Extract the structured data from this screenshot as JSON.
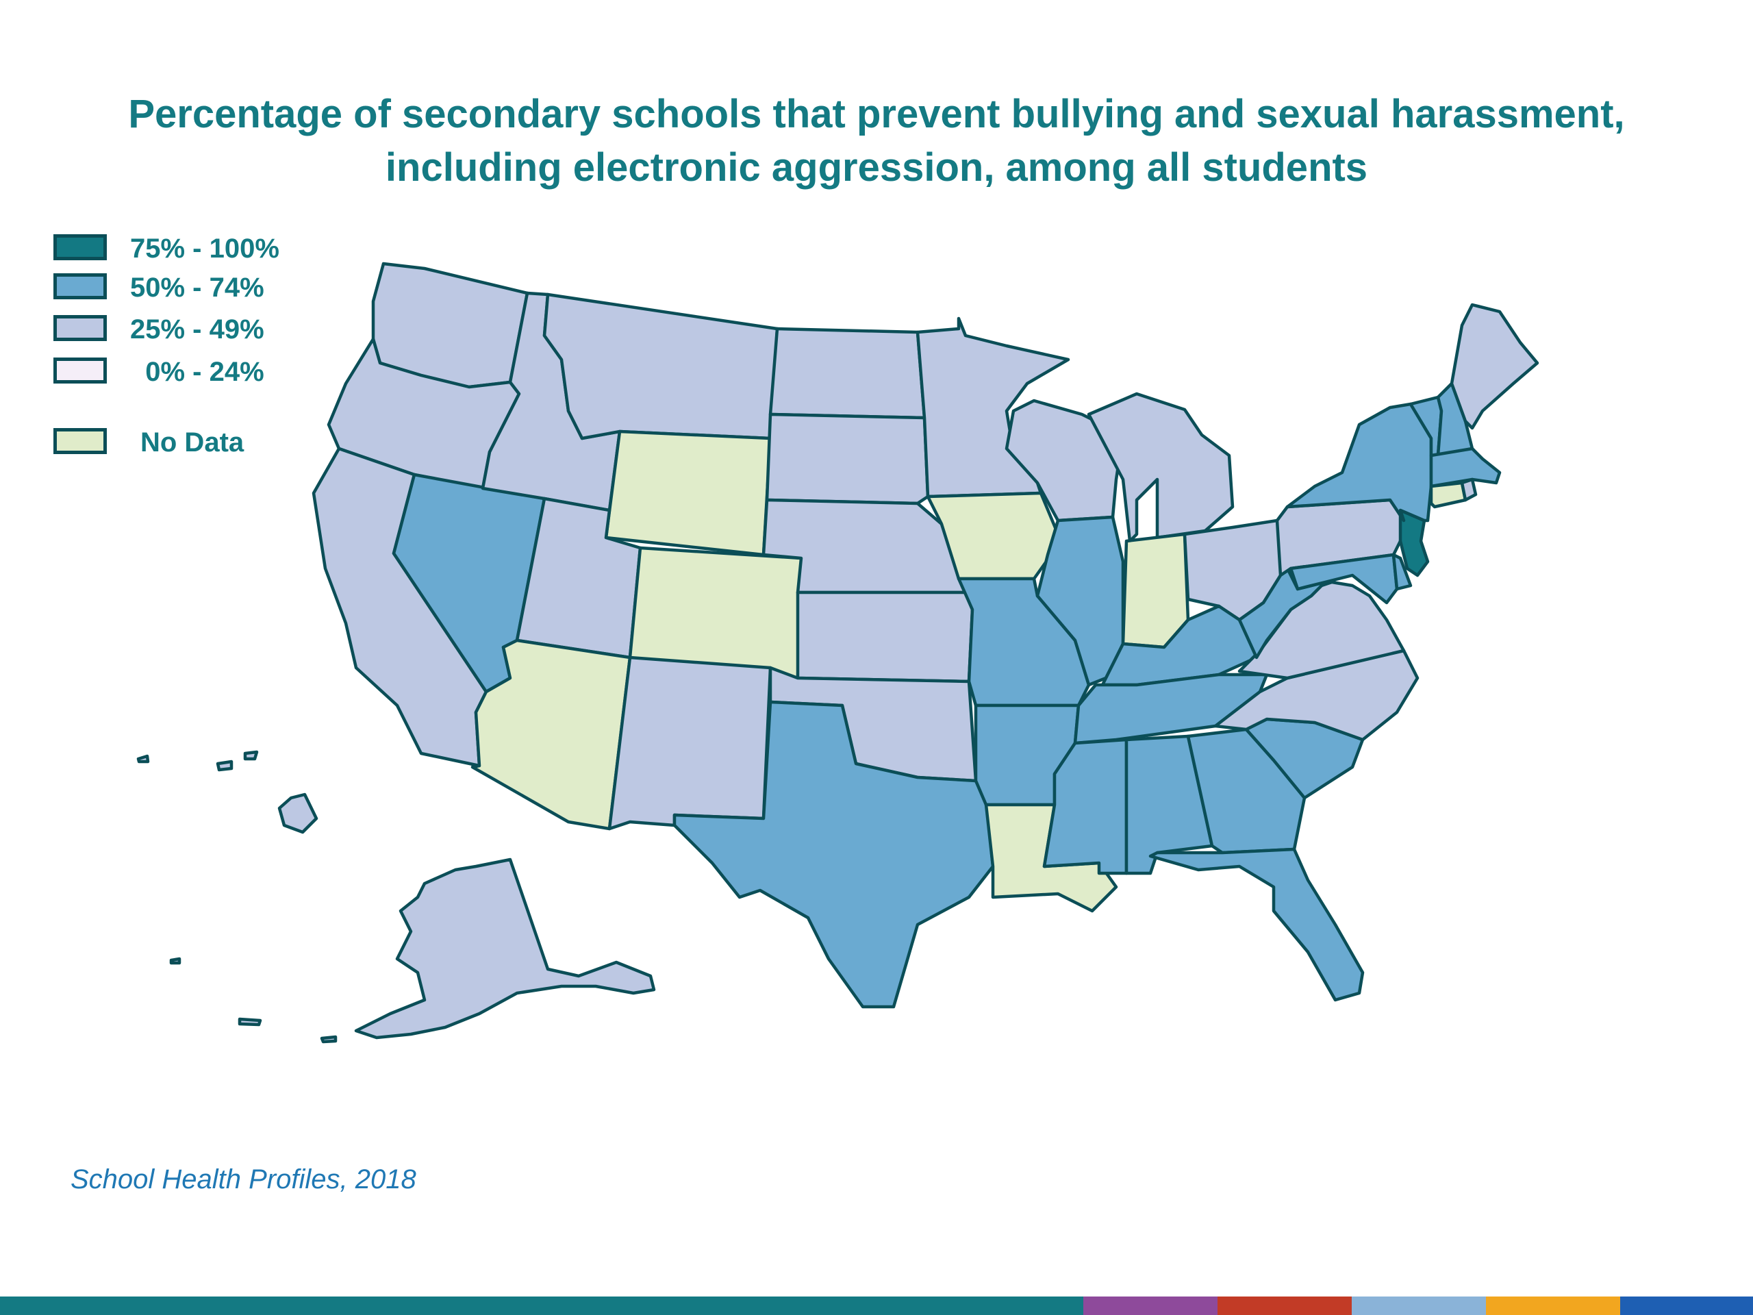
{
  "title": {
    "line1": "Percentage of secondary schools that prevent bullying and sexual harassment,",
    "line2": "including electronic aggression, among all students"
  },
  "legend": [
    {
      "label": "75% - 100%",
      "color": "#137983"
    },
    {
      "label": "50% - 74%",
      "color": "#6aaad1"
    },
    {
      "label": "25% - 49%",
      "color": "#bdc8e3"
    },
    {
      "label": "  0% - 24%",
      "color": "#f5eef8"
    },
    {
      "label": "No Data",
      "color": "#e0ecca"
    }
  ],
  "map_data": {
    "stroke_color": "#0b4e57",
    "categories": {
      "75% - 100%": [
        "New Jersey"
      ],
      "50% - 74%": [
        "Nevada",
        "Texas",
        "Missouri",
        "Arkansas",
        "Illinois",
        "Kentucky",
        "Tennessee",
        "Mississippi",
        "Alabama",
        "Georgia",
        "South Carolina",
        "Florida",
        "West Virginia",
        "Maryland",
        "Delaware",
        "New York",
        "Vermont",
        "New Hampshire",
        "Massachusetts"
      ],
      "25% - 49%": [
        "Washington",
        "Oregon",
        "California",
        "Idaho",
        "Montana",
        "Utah",
        "New Mexico",
        "North Dakota",
        "South Dakota",
        "Nebraska",
        "Kansas",
        "Oklahoma",
        "Minnesota",
        "Wisconsin",
        "Michigan",
        "Ohio",
        "Pennsylvania",
        "Virginia",
        "North Carolina",
        "Maine",
        "Alaska",
        "Hawaii",
        "Rhode Island"
      ],
      "0% - 24%": [],
      "No Data": [
        "Wyoming",
        "Colorado",
        "Arizona",
        "Iowa",
        "Indiana",
        "Louisiana",
        "Connecticut"
      ]
    }
  },
  "source": "School Health Profiles, 2018",
  "bottom_bar_colors": [
    "#147a83",
    "#8e4a9b",
    "#c23b26",
    "#8ab3d8",
    "#f2a61f",
    "#1e5fb3"
  ]
}
